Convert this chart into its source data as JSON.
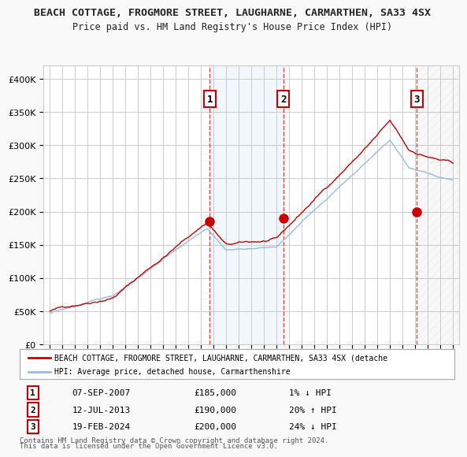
{
  "title1": "BEACH COTTAGE, FROGMORE STREET, LAUGHARNE, CARMARTHEN, SA33 4SX",
  "title2": "Price paid vs. HM Land Registry's House Price Index (HPI)",
  "red_line_label": "BEACH COTTAGE, FROGMORE STREET, LAUGHARNE, CARMARTHEN, SA33 4SX (detache",
  "blue_line_label": "HPI: Average price, detached house, Carmarthenshire",
  "transactions": [
    {
      "num": 1,
      "date": "07-SEP-2007",
      "price": "£185,000",
      "pct": "1%",
      "dir": "↓",
      "year": 2007.69
    },
    {
      "num": 2,
      "date": "12-JUL-2013",
      "price": "£190,000",
      "pct": "20%",
      "dir": "↑",
      "year": 2013.53
    },
    {
      "num": 3,
      "date": "19-FEB-2024",
      "price": "£200,000",
      "pct": "24%",
      "dir": "↓",
      "year": 2024.12
    }
  ],
  "footnote1": "Contains HM Land Registry data © Crown copyright and database right 2024.",
  "footnote2": "This data is licensed under the Open Government Licence v3.0.",
  "ylim": [
    0,
    420000
  ],
  "xlim_start": 1994.5,
  "xlim_end": 2027.5,
  "background_color": "#f9f9f9",
  "plot_bg_color": "#ffffff",
  "grid_color": "#cccccc",
  "red_color": "#cc0000",
  "blue_color": "#99bbdd",
  "shade1_start": 2007.69,
  "shade1_end": 2013.53,
  "shade2_start": 2024.12,
  "shade2_end": 2027.5,
  "hatch_start": 2024.12,
  "hatch_end": 2027.5
}
